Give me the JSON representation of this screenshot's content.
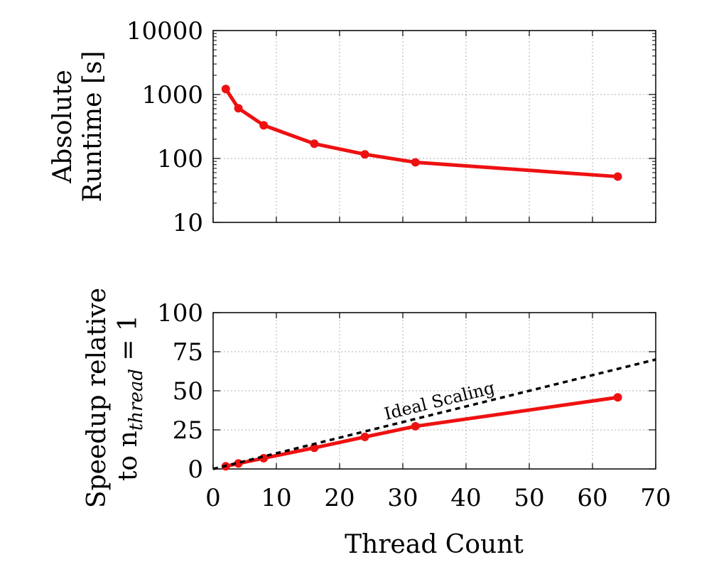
{
  "chart_data": [
    {
      "type": "line",
      "xlabel": "",
      "ylabel_lines": [
        "Absolute",
        "Runtime [s]"
      ],
      "yscale": "log",
      "xlim": [
        0,
        70
      ],
      "ylim": [
        10,
        10000
      ],
      "x_ticks": [
        0,
        10,
        20,
        30,
        40,
        50,
        60,
        70
      ],
      "y_ticks": [
        10,
        100,
        1000,
        10000
      ],
      "y_tick_labels": [
        "10",
        "100",
        "1000",
        "10000"
      ],
      "grid": true,
      "series": [
        {
          "color": "#ee1111",
          "x": [
            2,
            4,
            8,
            16,
            24,
            32,
            64
          ],
          "y": [
            1220,
            610,
            330,
            170,
            116,
            87,
            52
          ]
        }
      ]
    },
    {
      "type": "line",
      "xlabel": "Thread Count",
      "ylabel_lines": [
        "Speedup relative",
        "to n",
        "thread",
        " = 1"
      ],
      "xlim": [
        0,
        70
      ],
      "ylim": [
        0,
        100
      ],
      "x_ticks": [
        0,
        10,
        20,
        30,
        40,
        50,
        60,
        70
      ],
      "x_tick_labels": [
        "0",
        "10",
        "20",
        "30",
        "40",
        "50",
        "60",
        "70"
      ],
      "y_ticks": [
        0,
        25,
        50,
        75,
        100
      ],
      "y_tick_labels": [
        "0",
        "25",
        "50",
        "75",
        "100"
      ],
      "grid": true,
      "series": [
        {
          "color": "#ee1111",
          "x": [
            2,
            4,
            8,
            16,
            24,
            32,
            64
          ],
          "y": [
            1.7,
            3.5,
            6.9,
            13.5,
            20.5,
            27.3,
            45.8
          ]
        },
        {
          "color": "#000000",
          "style": "dashed",
          "x": [
            0,
            70
          ],
          "y": [
            0,
            70
          ]
        }
      ],
      "annotations": [
        {
          "text": "Ideal Scaling",
          "x": 36,
          "y": 40
        }
      ]
    }
  ]
}
